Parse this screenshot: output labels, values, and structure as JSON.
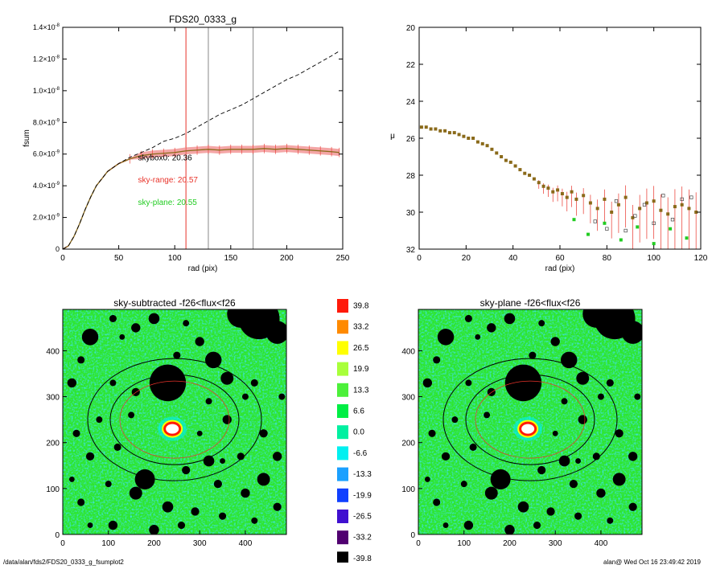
{
  "colors": {
    "axis": "#000000",
    "sky_red": "#e8332a",
    "sky_green": "#22cc22",
    "band_pink": "#f4a6a6",
    "curve_brown": "#8a6a1a",
    "vline_red": "#e8332a",
    "vline_gray": "#888888",
    "map_green": "#2ee62e",
    "map_cyan": "#00e8c8"
  },
  "chart_data": [
    {
      "id": "fsum",
      "type": "line",
      "title": "FDS20_0333_g",
      "xlabel": "rad (pix)",
      "ylabel": "fsum",
      "xlim": [
        0,
        250
      ],
      "ylim": [
        0,
        1.4e-08
      ],
      "x_ticks": [
        "0",
        "50",
        "100",
        "150",
        "200",
        "250"
      ],
      "x_tick_values": [
        0,
        50,
        100,
        150,
        200,
        250
      ],
      "y_ticks": [
        {
          "v": 0,
          "m": "0",
          "e": ""
        },
        {
          "v": 2e-09,
          "m": "2.0×10",
          "e": "-9"
        },
        {
          "v": 4e-09,
          "m": "4.0×10",
          "e": "-9"
        },
        {
          "v": 6e-09,
          "m": "6.0×10",
          "e": "-9"
        },
        {
          "v": 8e-09,
          "m": "8.0×10",
          "e": "-9"
        },
        {
          "v": 1e-08,
          "m": "1.0×10",
          "e": "-8"
        },
        {
          "v": 1.2e-08,
          "m": "1.2×10",
          "e": "-8"
        },
        {
          "v": 1.4e-08,
          "m": "1.4×10",
          "e": "-8"
        }
      ],
      "vlines": [
        {
          "x": 110,
          "color": "#e8332a"
        },
        {
          "x": 130,
          "color": "#888888"
        },
        {
          "x": 170,
          "color": "#888888"
        }
      ],
      "annotations": [
        {
          "text": "skybox0: 20.36",
          "x": 65,
          "y": 5.6e-09,
          "color": "#000000"
        },
        {
          "text": "sky-range: 20.57",
          "x": 65,
          "y": 4.2e-09,
          "color": "#e8332a"
        },
        {
          "text": "sky-plane: 20.55",
          "x": 65,
          "y": 2.8e-09,
          "color": "#22cc22"
        }
      ],
      "series": [
        {
          "style": "dashed",
          "x": [
            0,
            5,
            10,
            15,
            20,
            25,
            30,
            40,
            50,
            60,
            70,
            80,
            90,
            100,
            110,
            120,
            130,
            140,
            150,
            160,
            170,
            180,
            190,
            200,
            210,
            220,
            230,
            240,
            247
          ],
          "y": [
            0,
            2e-10,
            8e-10,
            1.6e-09,
            2.5e-09,
            3.3e-09,
            4e-09,
            4.9e-09,
            5.4e-09,
            5.8e-09,
            6.1e-09,
            6.4e-09,
            6.8e-09,
            7e-09,
            7.3e-09,
            7.7e-09,
            8.1e-09,
            8.5e-09,
            8.8e-09,
            9.1e-09,
            9.5e-09,
            9.9e-09,
            1.03e-08,
            1.07e-08,
            1.1e-08,
            1.14e-08,
            1.18e-08,
            1.22e-08,
            1.25e-08
          ]
        },
        {
          "style": "solid-band",
          "x": [
            0,
            5,
            10,
            15,
            20,
            25,
            30,
            40,
            50,
            60,
            70,
            80,
            90,
            100,
            110,
            120,
            130,
            140,
            150,
            160,
            170,
            180,
            190,
            200,
            210,
            220,
            230,
            240,
            247
          ],
          "y": [
            0,
            2e-10,
            8e-10,
            1.6e-09,
            2.5e-09,
            3.3e-09,
            4e-09,
            4.9e-09,
            5.4e-09,
            5.7e-09,
            5.9e-09,
            6e-09,
            6.05e-09,
            6.1e-09,
            6.2e-09,
            6.25e-09,
            6.3e-09,
            6.25e-09,
            6.3e-09,
            6.3e-09,
            6.3e-09,
            6.35e-09,
            6.3e-09,
            6.35e-09,
            6.3e-09,
            6.25e-09,
            6.2e-09,
            6.15e-09,
            6.1e-09
          ]
        }
      ]
    },
    {
      "id": "mu",
      "type": "scatter",
      "title": "",
      "xlabel": "",
      "ylabel": "μ",
      "xlim": [
        0,
        120
      ],
      "ylim": [
        32,
        20
      ],
      "x_ticks": [
        "0",
        "20",
        "40",
        "60",
        "80",
        "100",
        "120"
      ],
      "x_tick_values": [
        0,
        20,
        40,
        60,
        80,
        100,
        120
      ],
      "y_ticks": [
        "20",
        "22",
        "24",
        "26",
        "28",
        "30",
        "32"
      ],
      "y_tick_values": [
        20,
        22,
        24,
        26,
        28,
        30,
        32
      ],
      "series": [
        {
          "name": "",
          "marker": "square",
          "color": "#8a6a1a",
          "x": [
            1,
            3,
            5,
            7,
            9,
            11,
            13,
            15,
            17,
            19,
            21,
            23,
            25,
            27,
            29,
            31,
            33,
            35,
            37,
            39,
            41,
            43,
            45,
            47,
            49,
            51,
            53,
            55,
            57,
            59,
            61,
            63,
            65,
            67,
            70,
            73,
            76,
            79,
            82,
            85,
            88,
            91,
            94,
            97,
            100,
            103,
            106,
            109,
            112,
            115,
            118
          ],
          "y": [
            25.4,
            25.4,
            25.5,
            25.5,
            25.6,
            25.6,
            25.7,
            25.7,
            25.8,
            25.9,
            26.0,
            26.0,
            26.2,
            26.3,
            26.4,
            26.6,
            26.8,
            27.0,
            27.2,
            27.3,
            27.5,
            27.7,
            27.9,
            28.0,
            28.2,
            28.4,
            28.6,
            28.7,
            28.9,
            28.8,
            29.0,
            29.2,
            28.9,
            29.3,
            29.1,
            29.5,
            29.8,
            29.3,
            30.0,
            29.6,
            29.2,
            30.3,
            29.8,
            29.5,
            29.4,
            29.9,
            30.1,
            29.7,
            29.6,
            29.8,
            30.0
          ]
        },
        {
          "name": "",
          "marker": "square-open",
          "color": "#444444",
          "x": [
            75,
            80,
            84,
            88,
            92,
            96,
            100,
            104,
            108,
            112,
            116
          ],
          "y": [
            30.5,
            30.9,
            29.4,
            31.0,
            30.2,
            29.6,
            30.6,
            29.1,
            30.4,
            29.3,
            29.2
          ]
        },
        {
          "name": "",
          "marker": "square",
          "color": "#22cc22",
          "x": [
            66,
            72,
            79,
            86,
            93,
            100,
            107,
            114
          ],
          "y": [
            30.4,
            31.2,
            30.6,
            31.5,
            30.8,
            31.7,
            30.9,
            31.4
          ]
        }
      ]
    },
    {
      "id": "map1",
      "type": "heatmap",
      "title": "sky-subtracted -f26<flux<f26",
      "xlim": [
        0,
        490
      ],
      "ylim": [
        0,
        490
      ],
      "x_ticks": [
        "0",
        "100",
        "200",
        "300",
        "400"
      ],
      "x_tick_values": [
        0,
        100,
        200,
        300,
        400
      ],
      "y_ticks": [
        "0",
        "100",
        "200",
        "300",
        "400"
      ],
      "y_tick_values": [
        0,
        100,
        200,
        300,
        400
      ]
    },
    {
      "id": "map2",
      "type": "heatmap",
      "title": "sky-plane -f26<flux<f26",
      "xlim": [
        0,
        490
      ],
      "ylim": [
        0,
        490
      ],
      "x_ticks": [
        "0",
        "100",
        "200",
        "300",
        "400"
      ],
      "x_tick_values": [
        0,
        100,
        200,
        300,
        400
      ],
      "y_ticks": [
        "0",
        "100",
        "200",
        "300",
        "400"
      ],
      "y_tick_values": [
        0,
        100,
        200,
        300,
        400
      ]
    },
    {
      "id": "colorbar",
      "type": "table",
      "labels": [
        "39.8",
        "33.2",
        "26.5",
        "19.9",
        "13.3",
        "6.6",
        "0.0",
        "-6.6",
        "-13.3",
        "-19.9",
        "-26.5",
        "-33.2",
        "-39.8"
      ],
      "colors": [
        "#ff1a0a",
        "#ff8a00",
        "#ffff00",
        "#a8ff3a",
        "#4cf03a",
        "#00ee44",
        "#00f0a0",
        "#00f0f0",
        "#1aa0ff",
        "#1040ff",
        "#4010d0",
        "#500070",
        "#000000"
      ]
    }
  ],
  "footer": {
    "left": "/data/alan/fds2/FDS20_0333_g_fsumplot2",
    "right": "alan@  Wed Oct 16 23:49:42 2019"
  }
}
